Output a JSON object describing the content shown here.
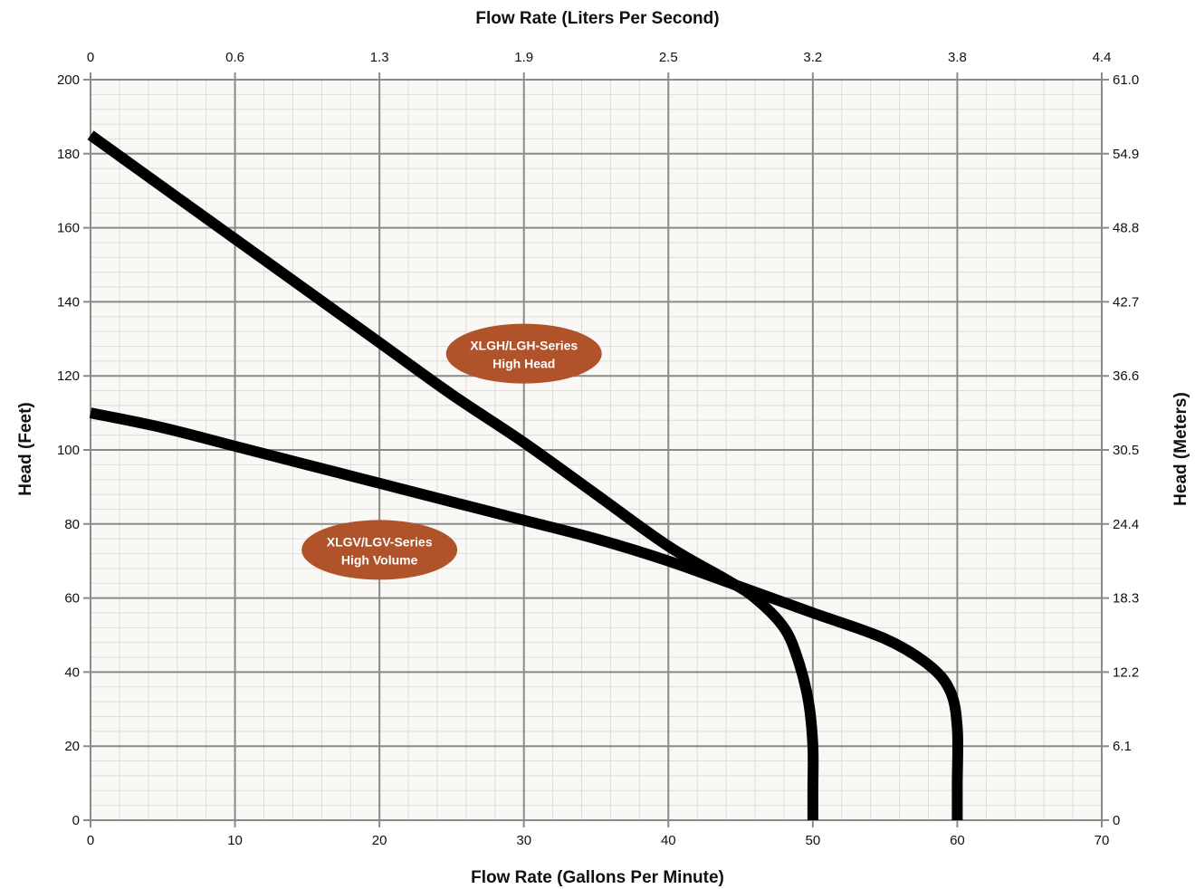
{
  "chart_data": {
    "type": "line",
    "x_axis": {
      "label": "Flow Rate (Gallons Per Minute)",
      "range": [
        0,
        70
      ],
      "ticks": [
        "0",
        "10",
        "20",
        "30",
        "40",
        "50",
        "60",
        "70"
      ]
    },
    "x2_axis": {
      "label": "Flow Rate (Liters Per Second)",
      "ticks": [
        "0",
        "0.6",
        "1.3",
        "1.9",
        "2.5",
        "3.2",
        "3.8",
        "4.4"
      ]
    },
    "y_axis": {
      "label": "Head (Feet)",
      "range": [
        0,
        200
      ],
      "ticks": [
        "0",
        "20",
        "40",
        "60",
        "80",
        "100",
        "120",
        "140",
        "160",
        "180",
        "200"
      ]
    },
    "y2_axis": {
      "label": "Head (Meters)",
      "ticks": [
        "0",
        "6.1",
        "12.2",
        "18.3",
        "24.4",
        "30.5",
        "36.6",
        "42.7",
        "48.8",
        "54.9",
        "61.0"
      ]
    },
    "grid": true,
    "series": [
      {
        "label_lines": [
          "XLGH/LGH-Series",
          "High Head"
        ],
        "label_at": {
          "x": 30,
          "y": 126
        },
        "x": [
          0,
          5,
          10,
          15,
          20,
          25,
          30,
          35,
          40,
          44,
          46,
          48,
          49,
          49.7,
          50,
          50,
          50
        ],
        "y": [
          185,
          171,
          157,
          143,
          129,
          115,
          102,
          88,
          74,
          65,
          60,
          52,
          43,
          32,
          20,
          8,
          0
        ]
      },
      {
        "label_lines": [
          "XLGV/LGV-Series",
          "High Volume"
        ],
        "label_at": {
          "x": 20,
          "y": 73
        },
        "x": [
          0,
          5,
          10,
          15,
          20,
          25,
          30,
          35,
          40,
          45,
          50,
          55,
          58,
          59.5,
          60,
          60,
          60
        ],
        "y": [
          110,
          106,
          101,
          96,
          91,
          86,
          81,
          76,
          70,
          63,
          56,
          49,
          42,
          35,
          25,
          10,
          0
        ]
      }
    ]
  },
  "colors": {
    "plot_bg": "#f9f8f4",
    "grid_minor": "#dcdcdc",
    "grid_major": "#8a8a8a",
    "curve": "#000000",
    "badge": "#b0522a",
    "badge_text": "#ffffff"
  }
}
